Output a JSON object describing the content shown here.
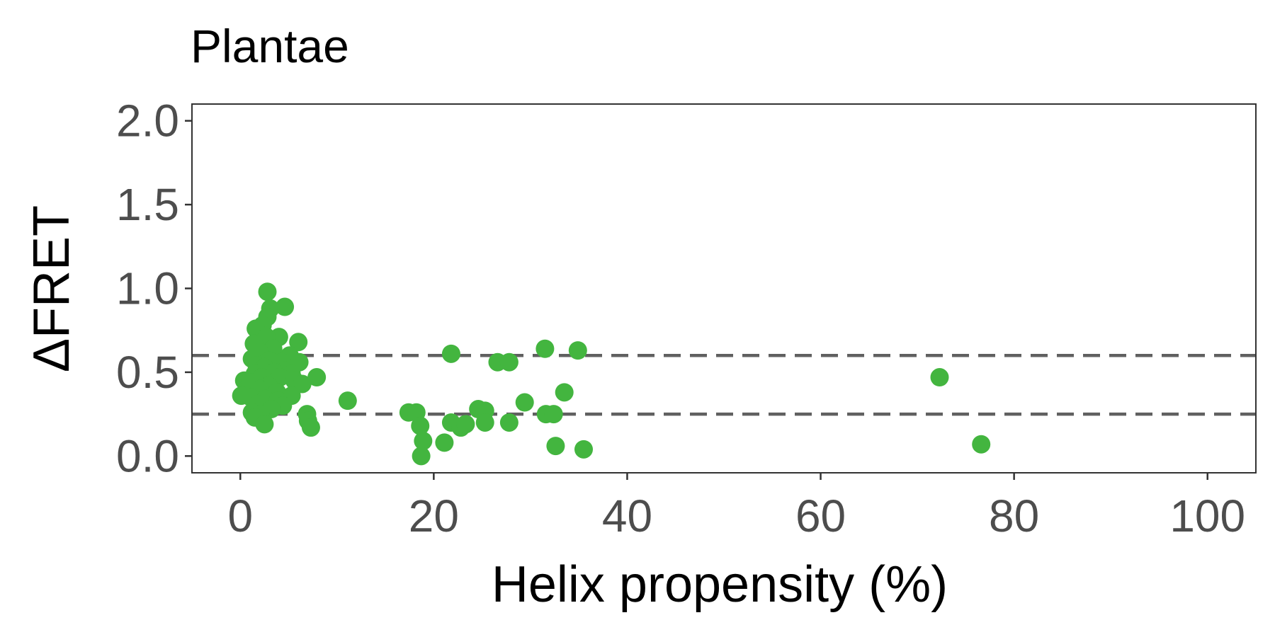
{
  "chart_data": {
    "type": "scatter",
    "title": "Plantae",
    "xlabel": "Helix propensity (%)",
    "ylabel": "ΔFRET",
    "xlim": [
      -5,
      105
    ],
    "ylim": [
      -0.1,
      2.1
    ],
    "xticks": [
      0,
      20,
      40,
      60,
      80,
      100
    ],
    "xtick_labels": [
      "0",
      "20",
      "40",
      "60",
      "80",
      "100"
    ],
    "yticks": [
      0.0,
      0.5,
      1.0,
      1.5,
      2.0
    ],
    "ytick_labels": [
      "0.0",
      "0.5",
      "1.0",
      "1.5",
      "2.0"
    ],
    "grid": false,
    "point_color": "#43b53f",
    "reference_lines": [
      {
        "axis": "y",
        "value": 0.6,
        "style": "dashed",
        "color": "#606060"
      },
      {
        "axis": "y",
        "value": 0.25,
        "style": "dashed",
        "color": "#606060"
      }
    ],
    "points": [
      {
        "x": 2.8,
        "y": 0.98
      },
      {
        "x": 4.6,
        "y": 0.89
      },
      {
        "x": 3.1,
        "y": 0.88
      },
      {
        "x": 2.8,
        "y": 0.83
      },
      {
        "x": 2.3,
        "y": 0.78
      },
      {
        "x": 1.6,
        "y": 0.76
      },
      {
        "x": 4.0,
        "y": 0.71
      },
      {
        "x": 2.7,
        "y": 0.71
      },
      {
        "x": 1.4,
        "y": 0.67
      },
      {
        "x": 6.0,
        "y": 0.68
      },
      {
        "x": 3.4,
        "y": 0.64
      },
      {
        "x": 2.0,
        "y": 0.62
      },
      {
        "x": 5.1,
        "y": 0.6
      },
      {
        "x": 1.2,
        "y": 0.58
      },
      {
        "x": 3.0,
        "y": 0.57
      },
      {
        "x": 4.3,
        "y": 0.56
      },
      {
        "x": 6.1,
        "y": 0.56
      },
      {
        "x": 1.7,
        "y": 0.54
      },
      {
        "x": 2.5,
        "y": 0.53
      },
      {
        "x": 4.6,
        "y": 0.51
      },
      {
        "x": 3.5,
        "y": 0.5
      },
      {
        "x": 5.3,
        "y": 0.49
      },
      {
        "x": 1.5,
        "y": 0.49
      },
      {
        "x": 2.2,
        "y": 0.47
      },
      {
        "x": 4.1,
        "y": 0.47
      },
      {
        "x": 7.9,
        "y": 0.47
      },
      {
        "x": 0.4,
        "y": 0.45
      },
      {
        "x": 5.6,
        "y": 0.45
      },
      {
        "x": 1.0,
        "y": 0.44
      },
      {
        "x": 6.4,
        "y": 0.43
      },
      {
        "x": 2.9,
        "y": 0.42
      },
      {
        "x": 2.0,
        "y": 0.4
      },
      {
        "x": 3.8,
        "y": 0.38
      },
      {
        "x": 0.1,
        "y": 0.36
      },
      {
        "x": 5.3,
        "y": 0.36
      },
      {
        "x": 1.1,
        "y": 0.35
      },
      {
        "x": 2.6,
        "y": 0.34
      },
      {
        "x": 3.9,
        "y": 0.33
      },
      {
        "x": 11.1,
        "y": 0.33
      },
      {
        "x": 1.8,
        "y": 0.31
      },
      {
        "x": 4.4,
        "y": 0.3
      },
      {
        "x": 3.2,
        "y": 0.28
      },
      {
        "x": 1.2,
        "y": 0.26
      },
      {
        "x": 2.1,
        "y": 0.25
      },
      {
        "x": 6.9,
        "y": 0.25
      },
      {
        "x": 1.5,
        "y": 0.23
      },
      {
        "x": 7.0,
        "y": 0.21
      },
      {
        "x": 2.5,
        "y": 0.19
      },
      {
        "x": 7.3,
        "y": 0.17
      },
      {
        "x": 17.4,
        "y": 0.26
      },
      {
        "x": 18.2,
        "y": 0.26
      },
      {
        "x": 18.6,
        "y": 0.18
      },
      {
        "x": 18.9,
        "y": 0.09
      },
      {
        "x": 18.7,
        "y": 0.0
      },
      {
        "x": 21.1,
        "y": 0.08
      },
      {
        "x": 21.8,
        "y": 0.61
      },
      {
        "x": 21.8,
        "y": 0.2
      },
      {
        "x": 22.8,
        "y": 0.17
      },
      {
        "x": 23.3,
        "y": 0.19
      },
      {
        "x": 24.6,
        "y": 0.28
      },
      {
        "x": 25.3,
        "y": 0.27
      },
      {
        "x": 25.3,
        "y": 0.2
      },
      {
        "x": 26.6,
        "y": 0.56
      },
      {
        "x": 27.8,
        "y": 0.56
      },
      {
        "x": 27.8,
        "y": 0.2
      },
      {
        "x": 29.4,
        "y": 0.32
      },
      {
        "x": 31.5,
        "y": 0.64
      },
      {
        "x": 31.6,
        "y": 0.25
      },
      {
        "x": 32.4,
        "y": 0.25
      },
      {
        "x": 32.6,
        "y": 0.06
      },
      {
        "x": 33.5,
        "y": 0.38
      },
      {
        "x": 34.9,
        "y": 0.63
      },
      {
        "x": 35.5,
        "y": 0.04
      },
      {
        "x": 72.3,
        "y": 0.47
      },
      {
        "x": 76.6,
        "y": 0.07
      }
    ]
  }
}
